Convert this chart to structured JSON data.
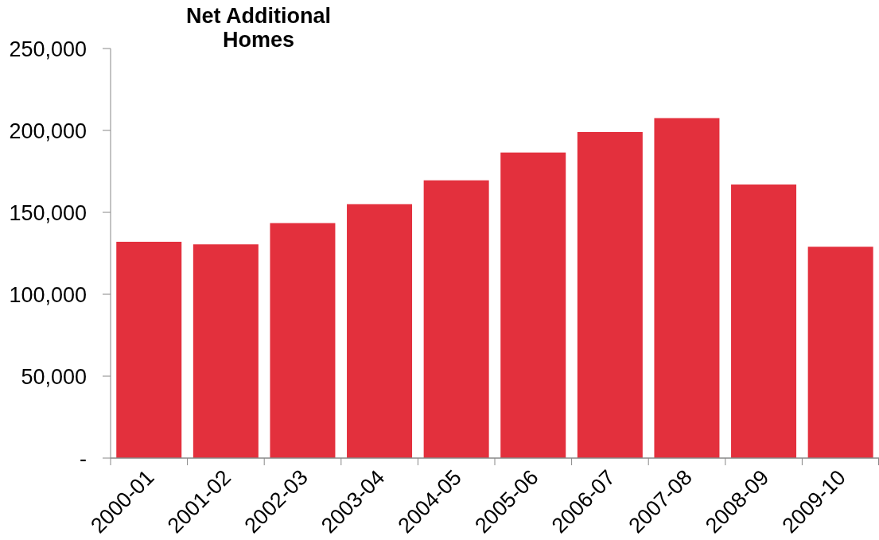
{
  "chart_data": {
    "type": "bar",
    "title": "Net Additional Homes",
    "categories": [
      "2000-01",
      "2001-02",
      "2002-03",
      "2003-04",
      "2004-05",
      "2005-06",
      "2006-07",
      "2007-08",
      "2008-09",
      "2009-10"
    ],
    "values": [
      132000,
      130500,
      143500,
      155000,
      169500,
      186500,
      199000,
      207500,
      167000,
      129000
    ],
    "color": "#e3303d",
    "ylim": [
      0,
      250000
    ],
    "yticks": [
      {
        "value": 0,
        "label": "-"
      },
      {
        "value": 50000,
        "label": "50,000"
      },
      {
        "value": 100000,
        "label": "100,000"
      },
      {
        "value": 150000,
        "label": "150,000"
      },
      {
        "value": 200000,
        "label": "200,000"
      },
      {
        "value": 250000,
        "label": "250,000"
      }
    ]
  }
}
